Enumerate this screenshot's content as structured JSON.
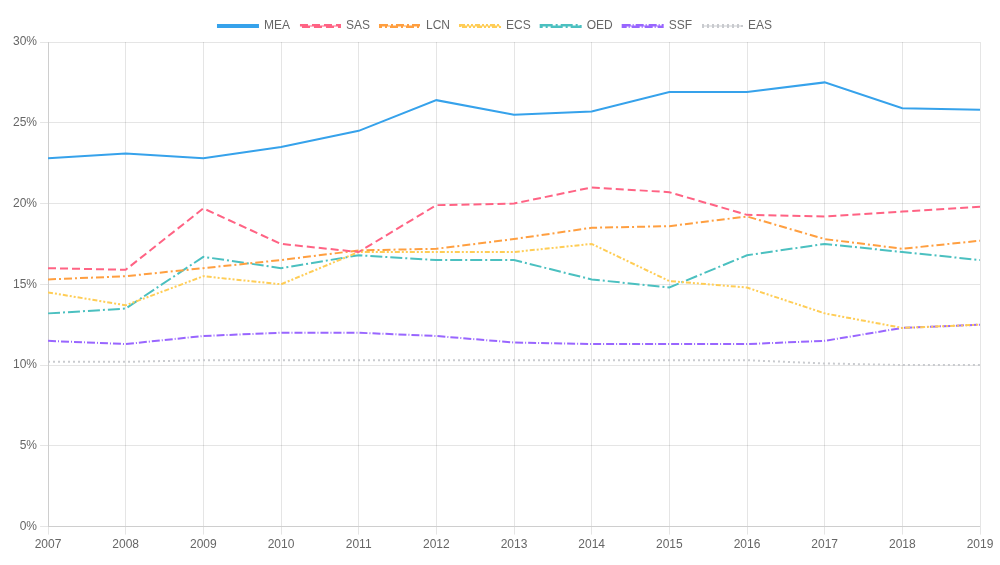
{
  "chart_data": {
    "type": "line",
    "x": [
      2007,
      2008,
      2009,
      2010,
      2011,
      2012,
      2013,
      2014,
      2015,
      2016,
      2017,
      2018,
      2019
    ],
    "series": [
      {
        "name": "MEA",
        "line_style": "solid",
        "values": [
          22.8,
          23.1,
          22.8,
          23.5,
          24.5,
          26.4,
          25.5,
          25.7,
          26.9,
          26.9,
          27.5,
          25.9,
          25.8
        ]
      },
      {
        "name": "SAS",
        "line_style": "dashed",
        "values": [
          16.0,
          15.9,
          19.7,
          17.5,
          17.0,
          19.9,
          20.0,
          21.0,
          20.7,
          19.3,
          19.2,
          19.5,
          19.8
        ]
      },
      {
        "name": "LCN",
        "line_style": "dashdot",
        "values": [
          15.3,
          15.5,
          16.0,
          16.5,
          17.1,
          17.2,
          17.8,
          18.5,
          18.6,
          19.2,
          17.8,
          17.2,
          17.7
        ]
      },
      {
        "name": "ECS",
        "line_style": "dashdotdot",
        "values": [
          14.5,
          13.7,
          15.5,
          15.0,
          17.0,
          17.0,
          17.0,
          17.5,
          15.2,
          14.8,
          13.2,
          12.3,
          12.5
        ]
      },
      {
        "name": "OED",
        "line_style": "longdashdot",
        "values": [
          13.2,
          13.5,
          16.7,
          16.0,
          16.8,
          16.5,
          16.5,
          15.3,
          14.8,
          16.8,
          17.5,
          17.0,
          16.5
        ]
      },
      {
        "name": "SSF",
        "line_style": "densedashdot",
        "values": [
          11.5,
          11.3,
          11.8,
          12.0,
          12.0,
          11.8,
          11.4,
          11.3,
          11.3,
          11.3,
          11.5,
          12.3,
          12.5
        ]
      },
      {
        "name": "EAS",
        "line_style": "dotted",
        "values": [
          10.2,
          10.2,
          10.3,
          10.3,
          10.3,
          10.3,
          10.3,
          10.3,
          10.3,
          10.3,
          10.1,
          10.0,
          10.0
        ]
      }
    ],
    "xlim": [
      2007,
      2019
    ],
    "xticks": [
      2007,
      2008,
      2009,
      2010,
      2011,
      2012,
      2013,
      2014,
      2015,
      2016,
      2017,
      2018,
      2019
    ],
    "ylim": [
      0,
      30
    ],
    "yticks": [
      {
        "value": 0,
        "label": "0%"
      },
      {
        "value": 5,
        "label": "5%"
      },
      {
        "value": 10,
        "label": "10%"
      },
      {
        "value": 15,
        "label": "15%"
      },
      {
        "value": 20,
        "label": "20%"
      },
      {
        "value": 25,
        "label": "25%"
      },
      {
        "value": 30,
        "label": "30%"
      }
    ],
    "grid": true,
    "legend": "top"
  }
}
